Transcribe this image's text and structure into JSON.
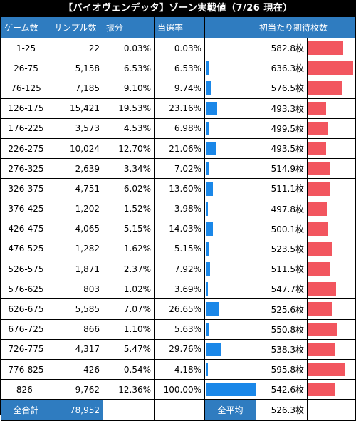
{
  "title": "【バイオヴェンデッタ】ゾーン実戦値（7/26 現在）",
  "headers": {
    "game_count": "ゲーム数",
    "samples": "サンプル数",
    "distribution": "振分",
    "win_rate": "当選率",
    "expected_coins": "初当たり期待枚数"
  },
  "rows": [
    {
      "range": "1-25",
      "samples": "22",
      "dist": "0.03%",
      "rate": "0.03%",
      "rate_value": 0.03,
      "coins": "582.8枚",
      "coins_value": 582.8
    },
    {
      "range": "26-75",
      "samples": "5,158",
      "dist": "6.53%",
      "rate": "6.53%",
      "rate_value": 6.53,
      "coins": "636.3枚",
      "coins_value": 636.3
    },
    {
      "range": "76-125",
      "samples": "7,185",
      "dist": "9.10%",
      "rate": "9.74%",
      "rate_value": 9.74,
      "coins": "576.5枚",
      "coins_value": 576.5
    },
    {
      "range": "126-175",
      "samples": "15,421",
      "dist": "19.53%",
      "rate": "23.16%",
      "rate_value": 23.16,
      "coins": "493.3枚",
      "coins_value": 493.3
    },
    {
      "range": "176-225",
      "samples": "3,573",
      "dist": "4.53%",
      "rate": "6.98%",
      "rate_value": 6.98,
      "coins": "499.5枚",
      "coins_value": 499.5
    },
    {
      "range": "226-275",
      "samples": "10,024",
      "dist": "12.70%",
      "rate": "21.06%",
      "rate_value": 21.06,
      "coins": "493.5枚",
      "coins_value": 493.5
    },
    {
      "range": "276-325",
      "samples": "2,639",
      "dist": "3.34%",
      "rate": "7.02%",
      "rate_value": 7.02,
      "coins": "514.9枚",
      "coins_value": 514.9
    },
    {
      "range": "326-375",
      "samples": "4,751",
      "dist": "6.02%",
      "rate": "13.60%",
      "rate_value": 13.6,
      "coins": "511.1枚",
      "coins_value": 511.1
    },
    {
      "range": "376-425",
      "samples": "1,202",
      "dist": "1.52%",
      "rate": "3.98%",
      "rate_value": 3.98,
      "coins": "497.8枚",
      "coins_value": 497.8
    },
    {
      "range": "426-475",
      "samples": "4,065",
      "dist": "5.15%",
      "rate": "14.03%",
      "rate_value": 14.03,
      "coins": "500.1枚",
      "coins_value": 500.1
    },
    {
      "range": "476-525",
      "samples": "1,282",
      "dist": "1.62%",
      "rate": "5.15%",
      "rate_value": 5.15,
      "coins": "523.5枚",
      "coins_value": 523.5
    },
    {
      "range": "526-575",
      "samples": "1,871",
      "dist": "2.37%",
      "rate": "7.92%",
      "rate_value": 7.92,
      "coins": "511.5枚",
      "coins_value": 511.5
    },
    {
      "range": "576-625",
      "samples": "803",
      "dist": "1.02%",
      "rate": "3.69%",
      "rate_value": 3.69,
      "coins": "547.7枚",
      "coins_value": 547.7
    },
    {
      "range": "626-675",
      "samples": "5,585",
      "dist": "7.07%",
      "rate": "26.65%",
      "rate_value": 26.65,
      "coins": "525.6枚",
      "coins_value": 525.6
    },
    {
      "range": "676-725",
      "samples": "866",
      "dist": "1.10%",
      "rate": "5.63%",
      "rate_value": 5.63,
      "coins": "550.8枚",
      "coins_value": 550.8
    },
    {
      "range": "726-775",
      "samples": "4,317",
      "dist": "5.47%",
      "rate": "29.76%",
      "rate_value": 29.76,
      "coins": "538.3枚",
      "coins_value": 538.3
    },
    {
      "range": "776-825",
      "samples": "426",
      "dist": "0.54%",
      "rate": "4.18%",
      "rate_value": 4.18,
      "coins": "595.8枚",
      "coins_value": 595.8
    },
    {
      "range": "826-",
      "samples": "9,762",
      "dist": "12.36%",
      "rate": "100.00%",
      "rate_value": 100.0,
      "coins": "542.6枚",
      "coins_value": 542.6
    }
  ],
  "footer": {
    "total_label": "全合計",
    "total_samples": "78,952",
    "avg_label": "全平均",
    "avg_coins": "526.3枚"
  },
  "colors": {
    "header_bg": "#2f7cc0",
    "rate_bar": "#1a87e8",
    "coins_bar": "#f2565f"
  }
}
